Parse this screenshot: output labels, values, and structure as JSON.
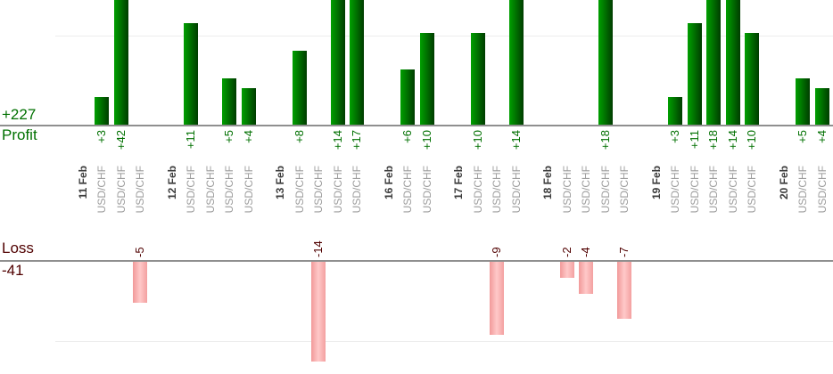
{
  "chart_data": {
    "type": "bar",
    "orientation": "vertical-split",
    "profit_axis": {
      "label": "Profit",
      "total": "+227",
      "gridline_value": 10
    },
    "loss_axis": {
      "label": "Loss",
      "total": "-41",
      "gridline_value": -10
    },
    "groups": [
      {
        "date": "11 Feb",
        "trades": [
          {
            "symbol": "USD/CHF",
            "value": 3
          },
          {
            "symbol": "USD/CHF",
            "value": 42
          },
          {
            "symbol": "USD/CHF",
            "value": -5
          }
        ]
      },
      {
        "date": "12 Feb",
        "trades": [
          {
            "symbol": "USD/CHF",
            "value": 11
          },
          {
            "symbol": "USD/CHF",
            "value": 0
          },
          {
            "symbol": "USD/CHF",
            "value": 5
          },
          {
            "symbol": "USD/CHF",
            "value": 4
          }
        ]
      },
      {
        "date": "13 Feb",
        "trades": [
          {
            "symbol": "USD/CHF",
            "value": 8
          },
          {
            "symbol": "USD/CHF",
            "value": -14
          },
          {
            "symbol": "USD/CHF",
            "value": 14
          },
          {
            "symbol": "USD/CHF",
            "value": 17
          }
        ]
      },
      {
        "date": "16 Feb",
        "trades": [
          {
            "symbol": "USD/CHF",
            "value": 6
          },
          {
            "symbol": "USD/CHF",
            "value": 10
          }
        ]
      },
      {
        "date": "17 Feb",
        "trades": [
          {
            "symbol": "USD/CHF",
            "value": 10
          },
          {
            "symbol": "USD/CHF",
            "value": -9
          },
          {
            "symbol": "USD/CHF",
            "value": 14
          }
        ]
      },
      {
        "date": "18 Feb",
        "trades": [
          {
            "symbol": "USD/CHF",
            "value": -2
          },
          {
            "symbol": "USD/CHF",
            "value": -4
          },
          {
            "symbol": "USD/CHF",
            "value": 18
          },
          {
            "symbol": "USD/CHF",
            "value": -7
          }
        ]
      },
      {
        "date": "19 Feb",
        "trades": [
          {
            "symbol": "USD/CHF",
            "value": 3
          },
          {
            "symbol": "USD/CHF",
            "value": 11
          },
          {
            "symbol": "USD/CHF",
            "value": 18
          },
          {
            "symbol": "USD/CHF",
            "value": 14
          },
          {
            "symbol": "USD/CHF",
            "value": 10
          }
        ]
      },
      {
        "date": "20 Feb",
        "trades": [
          {
            "symbol": "USD/CHF",
            "value": 5
          },
          {
            "symbol": "USD/CHF",
            "value": 4
          }
        ]
      }
    ],
    "colors": {
      "profit_text": "#007000",
      "loss_text": "#500000",
      "profit_bar_light": "#00a000",
      "profit_bar_dark": "#003c00",
      "loss_bar_left": "#f19999",
      "loss_bar_mid": "#ffc9c9",
      "loss_bar_right": "#f3a0a0",
      "axis_line": "#8f8f8f",
      "gridline": "#ededed"
    }
  }
}
